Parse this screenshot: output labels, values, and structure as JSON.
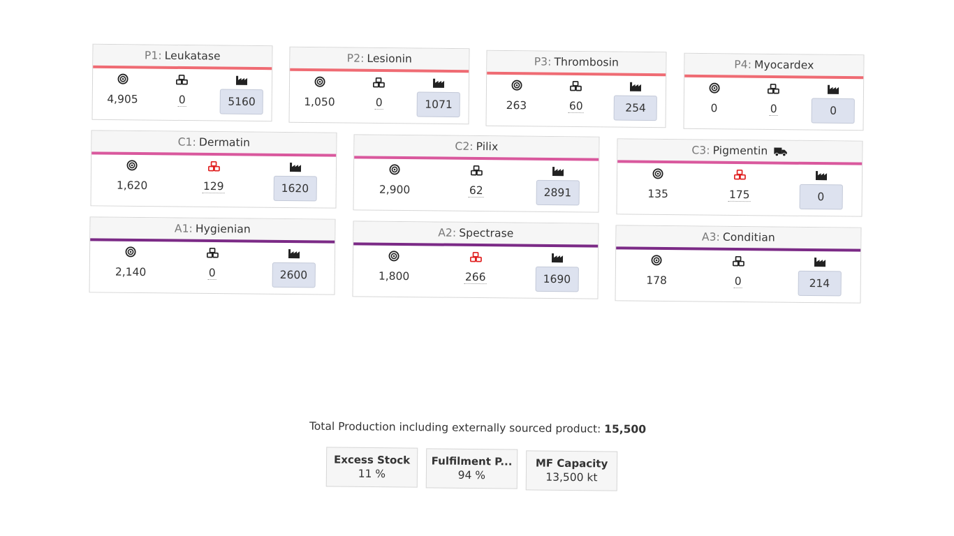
{
  "colors": {
    "product_p": "#ef6b73",
    "product_c": "#d9589d",
    "product_a": "#7b2a86",
    "input_bg": "#dde2ef",
    "alert_stock": "#e02020"
  },
  "icons": {
    "target": "target-icon",
    "stock": "boxes-icon",
    "production": "factory-icon",
    "truck": "truck-icon"
  },
  "products": [
    {
      "code": "P1",
      "name": "Leukatase",
      "group": "P",
      "target": "4,905",
      "stock": "0",
      "production": "5160",
      "stock_alert": false,
      "truck": false
    },
    {
      "code": "P2",
      "name": "Lesionin",
      "group": "P",
      "target": "1,050",
      "stock": "0",
      "production": "1071",
      "stock_alert": false,
      "truck": false
    },
    {
      "code": "P3",
      "name": "Thrombosin",
      "group": "P",
      "target": "263",
      "stock": "60",
      "production": "254",
      "stock_alert": false,
      "truck": false
    },
    {
      "code": "P4",
      "name": "Myocardex",
      "group": "P",
      "target": "0",
      "stock": "0",
      "production": "0",
      "stock_alert": false,
      "truck": false
    },
    {
      "code": "C1",
      "name": "Dermatin",
      "group": "C",
      "target": "1,620",
      "stock": "129",
      "production": "1620",
      "stock_alert": true,
      "truck": false
    },
    {
      "code": "C2",
      "name": "Pilix",
      "group": "C",
      "target": "2,900",
      "stock": "62",
      "production": "2891",
      "stock_alert": false,
      "truck": false
    },
    {
      "code": "C3",
      "name": "Pigmentin",
      "group": "C",
      "target": "135",
      "stock": "175",
      "production": "0",
      "stock_alert": true,
      "truck": true
    },
    {
      "code": "A1",
      "name": "Hygienian",
      "group": "A",
      "target": "2,140",
      "stock": "0",
      "production": "2600",
      "stock_alert": false,
      "truck": false
    },
    {
      "code": "A2",
      "name": "Spectrase",
      "group": "A",
      "target": "1,800",
      "stock": "266",
      "production": "1690",
      "stock_alert": true,
      "truck": false
    },
    {
      "code": "A3",
      "name": "Conditian",
      "group": "A",
      "target": "178",
      "stock": "0",
      "production": "214",
      "stock_alert": false,
      "truck": false
    }
  ],
  "summary": {
    "total_label": "Total Production including externally sourced product:",
    "total_value": "15,500",
    "stats": [
      {
        "label": "Excess Stock",
        "value": "11 %"
      },
      {
        "label": "Fulfilment P...",
        "value": "94 %"
      },
      {
        "label": "MF Capacity",
        "value": "13,500 kt"
      }
    ]
  }
}
